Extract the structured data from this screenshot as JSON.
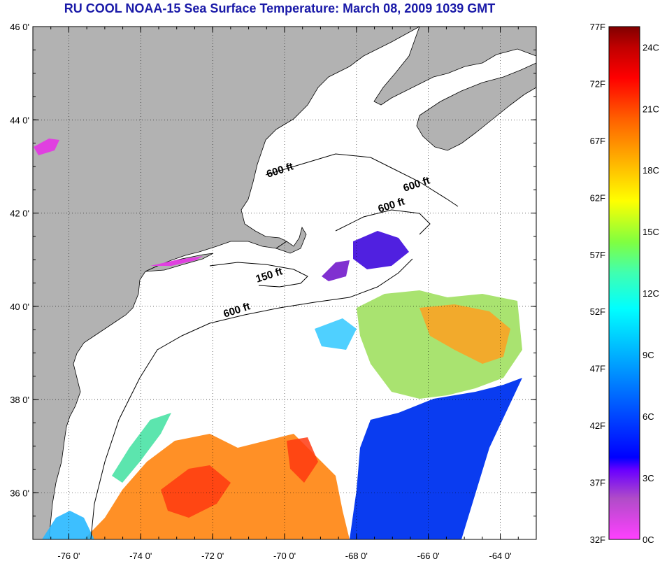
{
  "title": "RU COOL  NOAA-15  Sea Surface Temperature:  March 08, 2009 1039 GMT",
  "map": {
    "lon_min": -77,
    "lon_max": -63,
    "lat_min": 35,
    "lat_max": 46,
    "x_ticks": [
      {
        "value": -76,
        "label": "-76 0'"
      },
      {
        "value": -74,
        "label": "-74 0'"
      },
      {
        "value": -72,
        "label": "-72 0'"
      },
      {
        "value": -70,
        "label": "-70 0'"
      },
      {
        "value": -68,
        "label": "-68 0'"
      },
      {
        "value": -66,
        "label": "-66 0'"
      },
      {
        "value": -64,
        "label": "-64 0'"
      }
    ],
    "y_ticks": [
      {
        "value": 46,
        "label": "46 0'"
      },
      {
        "value": 44,
        "label": "44 0'"
      },
      {
        "value": 42,
        "label": "42 0'"
      },
      {
        "value": 40,
        "label": "40 0'"
      },
      {
        "value": 38,
        "label": "38 0'"
      },
      {
        "value": 36,
        "label": "36 0'"
      }
    ],
    "gridlines": "dotted",
    "land_color": "#b2b2b2",
    "ocean_color": "#ffffff",
    "contour_labels": [
      {
        "text": "600 ft",
        "lon": -70.1,
        "lat": 42.85
      },
      {
        "text": "600 ft",
        "lon": -66.3,
        "lat": 42.55
      },
      {
        "text": "600 ft",
        "lon": -67.0,
        "lat": 42.1
      },
      {
        "text": "150 ft",
        "lon": -70.4,
        "lat": 40.6
      },
      {
        "text": "600 ft",
        "lon": -71.3,
        "lat": 39.85
      }
    ]
  },
  "colorbar": {
    "min_f": 32,
    "max_f": 77,
    "f_labels": [
      "77F",
      "72F",
      "67F",
      "62F",
      "57F",
      "52F",
      "47F",
      "42F",
      "37F",
      "32F"
    ],
    "c_labels": [
      "24C",
      "21C",
      "18C",
      "15C",
      "12C",
      "9C",
      "6C",
      "3C",
      "0C"
    ],
    "colors": [
      "#ff40ff",
      "#b04cc8",
      "#6a00ff",
      "#0000ff",
      "#0060ff",
      "#00b0ff",
      "#00ffff",
      "#40ffb0",
      "#80ff40",
      "#ffff00",
      "#ffb000",
      "#ff6000",
      "#ff0000",
      "#c00000",
      "#800000"
    ]
  }
}
